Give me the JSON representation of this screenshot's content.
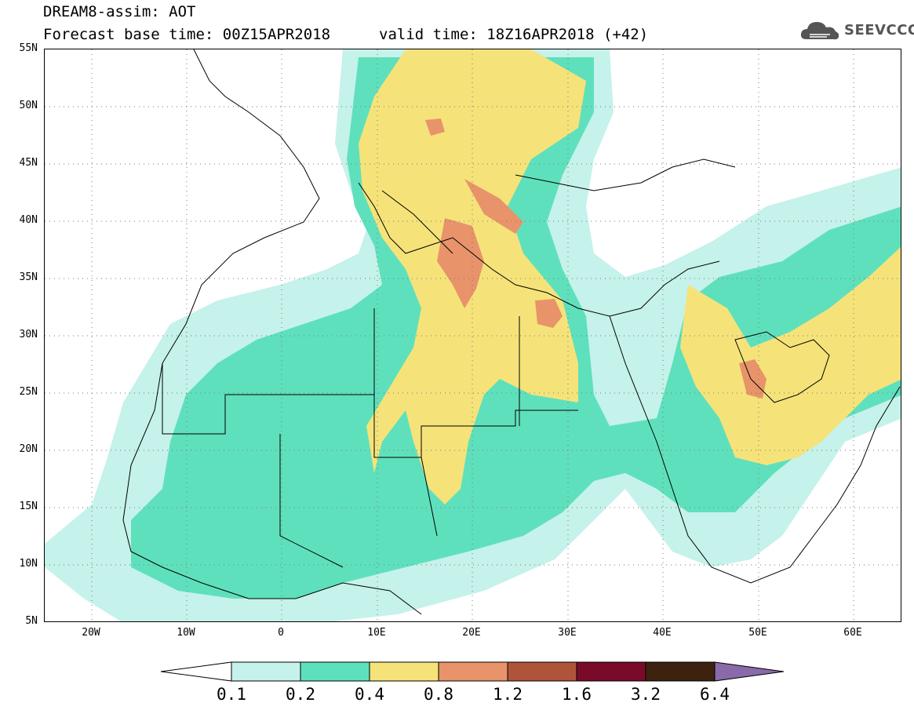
{
  "title": {
    "line1": "DREAM8-assim: AOT",
    "line2": "Forecast base time: 00Z15APR2018",
    "valid": "valid time: 18Z16APR2018 (+42)"
  },
  "logo": {
    "text": "SEEVCCC",
    "icon": "cloud-icon"
  },
  "map": {
    "variable": "Aerosol optical thickness",
    "lat_range": [
      5,
      55
    ],
    "lon_range": [
      -25,
      65
    ],
    "lat_ticks": [
      "55N",
      "50N",
      "45N",
      "40N",
      "35N",
      "30N",
      "25N",
      "20N",
      "15N",
      "10N",
      "5N"
    ],
    "lon_ticks": [
      "20W",
      "10W",
      "0",
      "10E",
      "20E",
      "30E",
      "40E",
      "50E",
      "60E"
    ],
    "grid": "dotted"
  },
  "colorbar": {
    "labels": [
      "0.1",
      "0.2",
      "0.4",
      "0.8",
      "1.2",
      "1.6",
      "3.2",
      "6.4"
    ],
    "colors": [
      "#ffffff",
      "#c5f2ea",
      "#5fe0bd",
      "#f5e37a",
      "#e8936a",
      "#b0533b",
      "#7a0a2a",
      "#3d2210",
      "#8a6aa8"
    ]
  }
}
